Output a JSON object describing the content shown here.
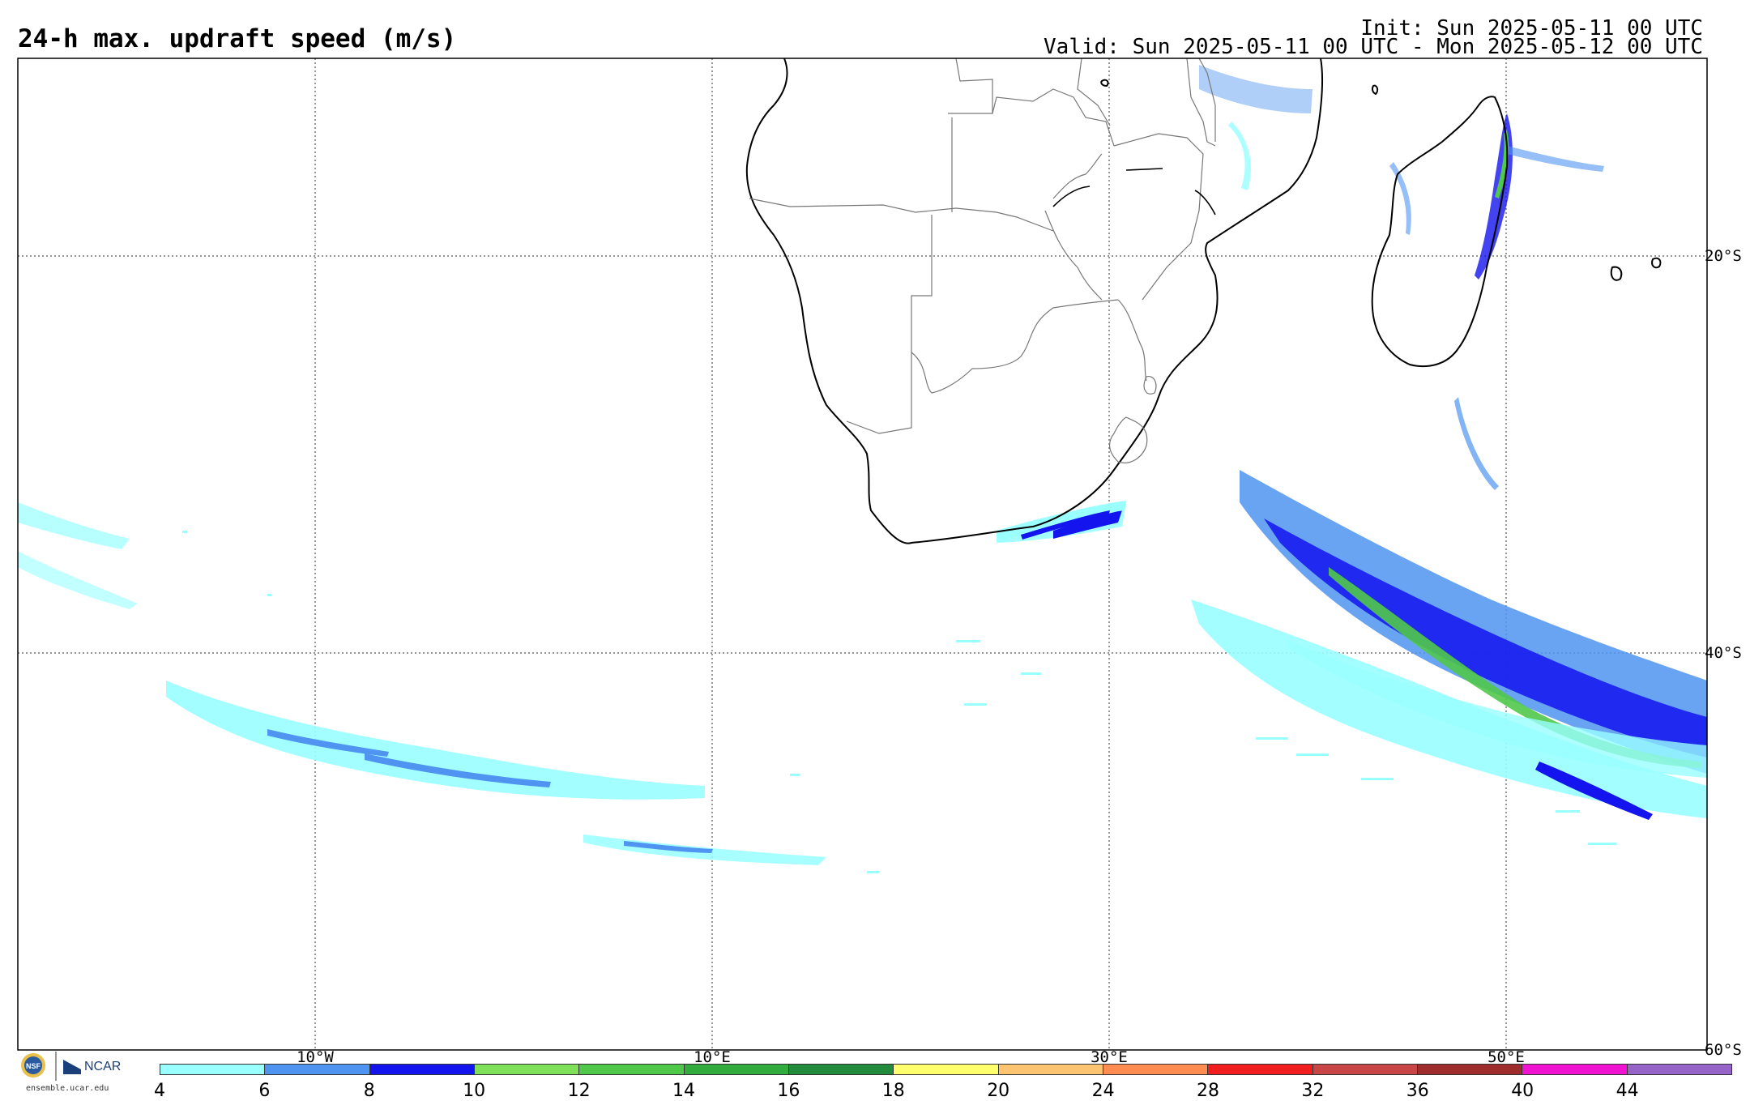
{
  "header": {
    "title": "24-h max. updraft speed (m/s)",
    "init": "Init: Sun 2025-05-11 00 UTC",
    "valid": "Valid: Sun 2025-05-11 00 UTC - Mon 2025-05-12 00 UTC"
  },
  "map": {
    "region": "Southern Africa / South Atlantic / SW Indian Ocean",
    "longitude_labels": [
      "10°W",
      "10°E",
      "30°E",
      "50°E"
    ],
    "latitude_labels": [
      "20°S",
      "40°S",
      "60°S"
    ]
  },
  "colorbar": {
    "levels": [
      "4",
      "6",
      "8",
      "10",
      "12",
      "14",
      "16",
      "18",
      "20",
      "24",
      "28",
      "32",
      "36",
      "40",
      "44"
    ],
    "colors": [
      "#99ffff",
      "#4f94f0",
      "#1414ee",
      "#7fe05a",
      "#50c84a",
      "#32ac3c",
      "#228c3c",
      "#ffff6e",
      "#ffc470",
      "#ff8c50",
      "#f01e1e",
      "#c84646",
      "#a02d2d",
      "#f014d2",
      "#9664c8"
    ]
  },
  "logos": {
    "nsf": "NSF",
    "ncar": "NCAR",
    "url": "ensemble.ucar.edu"
  }
}
